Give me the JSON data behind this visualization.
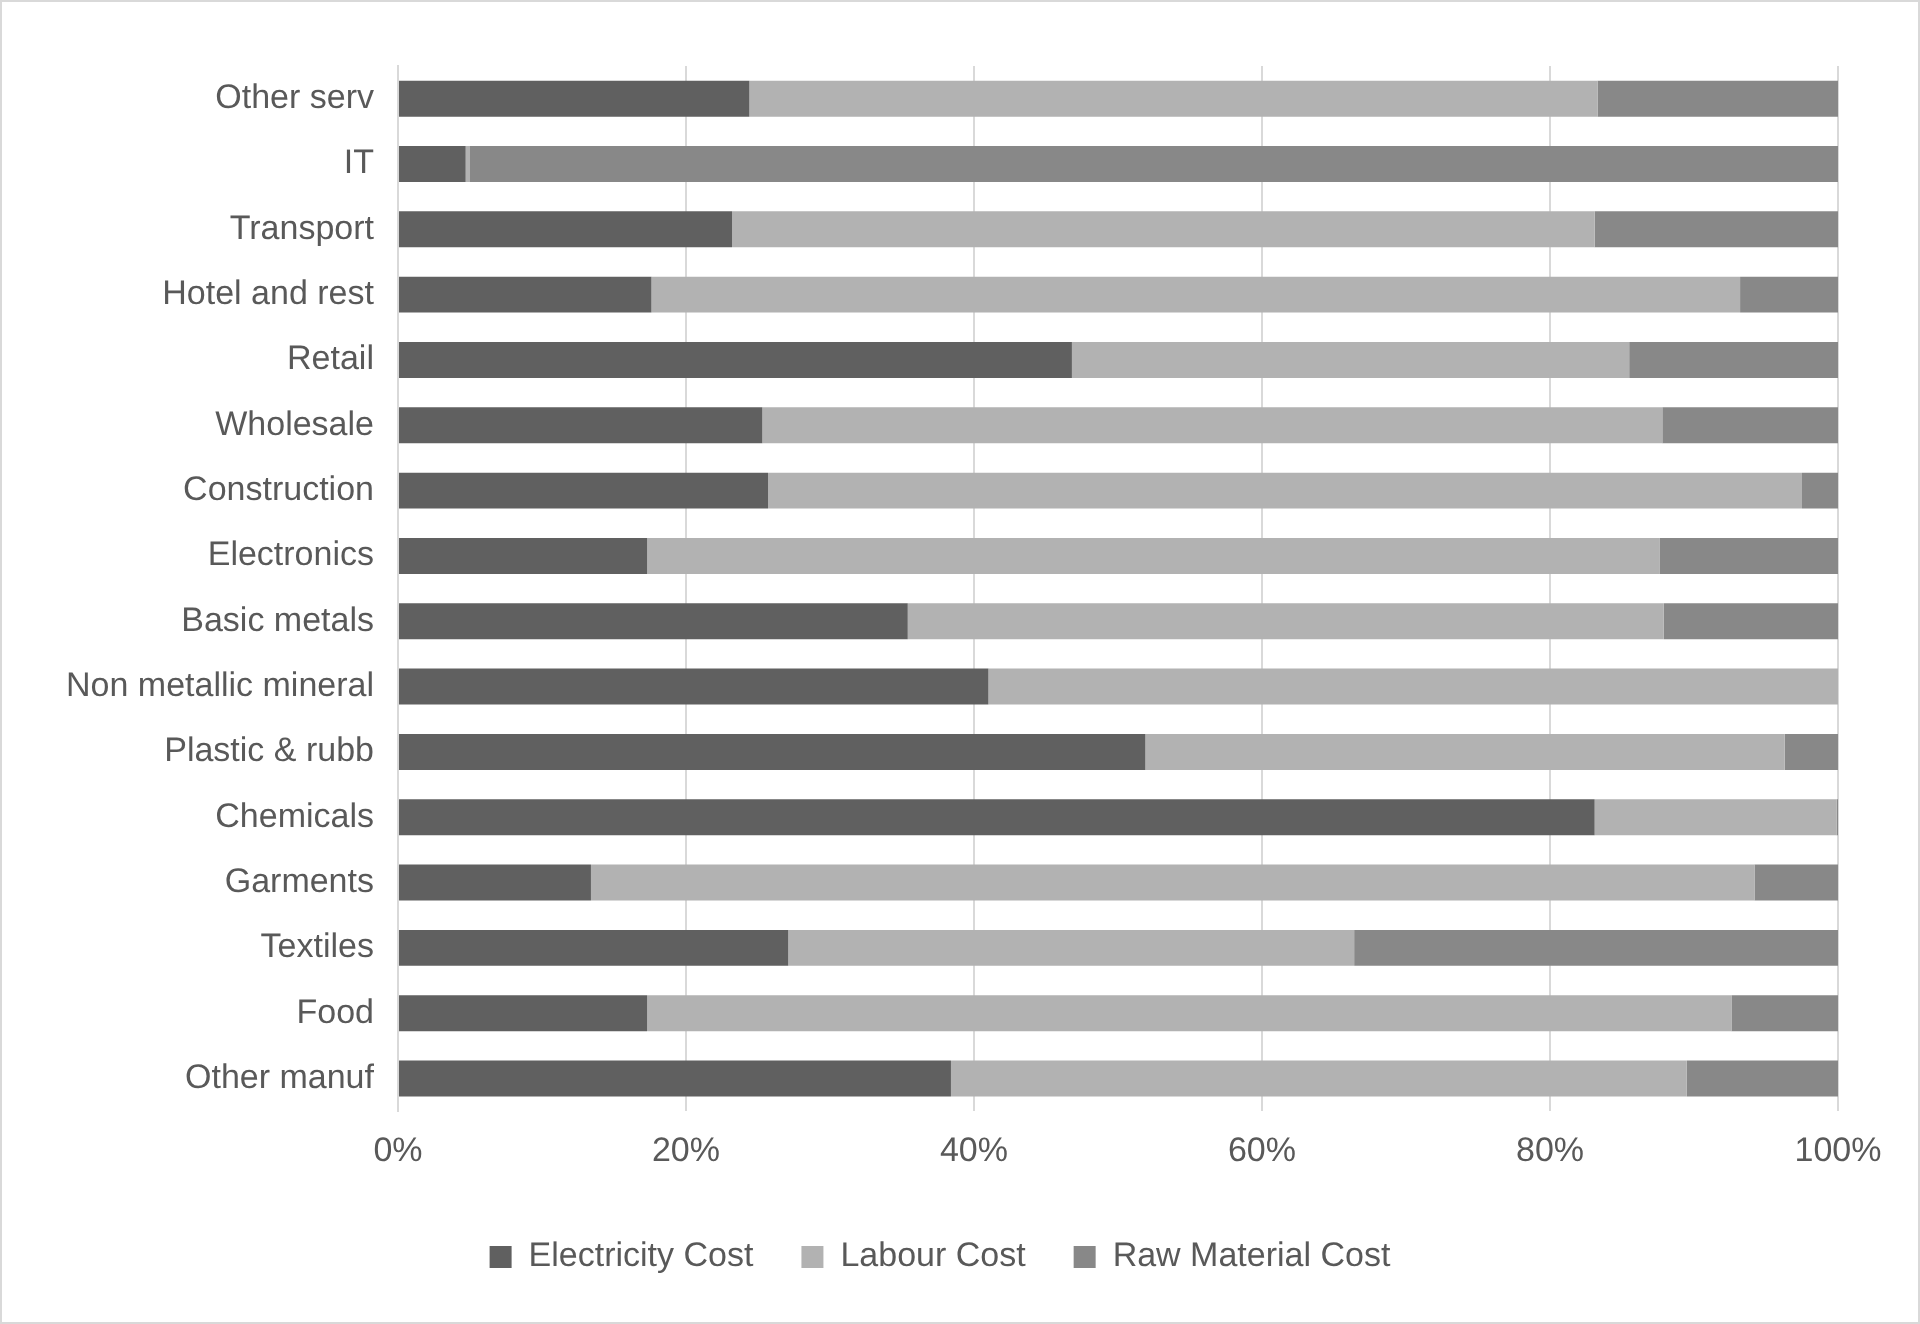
{
  "chart_data": {
    "type": "bar",
    "orientation": "horizontal",
    "stacked": true,
    "categories": [
      "Other serv",
      "IT",
      "Transport",
      "Hotel and rest",
      "Retail",
      "Wholesale",
      "Construction",
      "Electronics",
      "Basic metals",
      "Non metallic mineral",
      "Plastic & rubb",
      "Chemicals",
      "Garments",
      "Textiles",
      "Food",
      "Other manuf"
    ],
    "series": [
      {
        "name": "Electricity Cost",
        "color": "#606060",
        "values": [
          24.4,
          4.7,
          23.2,
          17.6,
          46.8,
          25.3,
          25.7,
          17.3,
          35.4,
          41.0,
          51.9,
          83.1,
          13.4,
          27.1,
          17.3,
          38.4
        ]
      },
      {
        "name": "Labour Cost",
        "color": "#b2b2b2",
        "values": [
          58.9,
          0.3,
          59.9,
          75.6,
          38.7,
          62.5,
          71.8,
          70.3,
          52.5,
          59.0,
          44.4,
          16.8,
          80.8,
          39.3,
          75.3,
          51.1
        ]
      },
      {
        "name": "Raw Material Cost",
        "color": "#888888",
        "values": [
          16.7,
          95.0,
          16.9,
          6.8,
          14.5,
          12.2,
          2.5,
          12.4,
          12.1,
          0,
          3.7,
          0.1,
          5.8,
          33.6,
          7.4,
          10.5
        ]
      }
    ],
    "xlim": [
      0,
      100
    ],
    "xticks": [
      {
        "value": 0,
        "label": "0%"
      },
      {
        "value": 20,
        "label": "20%"
      },
      {
        "value": 40,
        "label": "40%"
      },
      {
        "value": 60,
        "label": "60%"
      },
      {
        "value": 80,
        "label": "80%"
      },
      {
        "value": 100,
        "label": "100%"
      }
    ],
    "grid": "x",
    "legend": "bottom"
  }
}
